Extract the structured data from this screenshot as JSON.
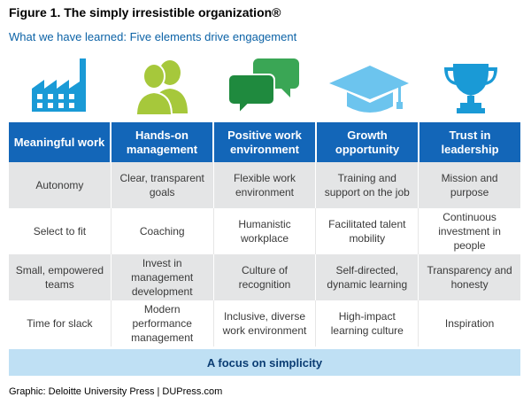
{
  "figure": {
    "title": "Figure 1. The simply irresistible organization®",
    "subtitle": "What we have learned: Five elements drive engagement"
  },
  "icons": [
    {
      "name": "factory-icon",
      "color": "#1a9ad6"
    },
    {
      "name": "people-icon",
      "color": "#a6c83b"
    },
    {
      "name": "speech-bubbles-icon",
      "color": "#2e9e4a"
    },
    {
      "name": "graduation-cap-icon",
      "color": "#6cc4ee"
    },
    {
      "name": "trophy-icon",
      "color": "#1a9ad6"
    }
  ],
  "columns": [
    {
      "header": "Meaningful work",
      "items": [
        "Autonomy",
        "Select to fit",
        "Small, empowered teams",
        "Time for slack"
      ]
    },
    {
      "header": "Hands-on management",
      "items": [
        "Clear, transparent goals",
        "Coaching",
        "Invest in management development",
        "Modern performance management"
      ]
    },
    {
      "header": "Positive work environment",
      "items": [
        "Flexible work environment",
        "Humanistic workplace",
        "Culture of recognition",
        "Inclusive, diverse work environment"
      ]
    },
    {
      "header": "Growth opportunity",
      "items": [
        "Training and support on the job",
        "Facilitated talent mobility",
        "Self-directed, dynamic learning",
        "High-impact learning culture"
      ]
    },
    {
      "header": "Trust in leadership",
      "items": [
        "Mission and purpose",
        "Continuous investment in people",
        "Transparency and honesty",
        "Inspiration"
      ]
    }
  ],
  "footer": "A focus on simplicity",
  "credit": "Graphic: Deloitte University Press  |  DUPress.com",
  "colors": {
    "header_blue": "#1366b8",
    "row_gray": "#e4e5e6",
    "footer_band": "#bfe0f4"
  }
}
